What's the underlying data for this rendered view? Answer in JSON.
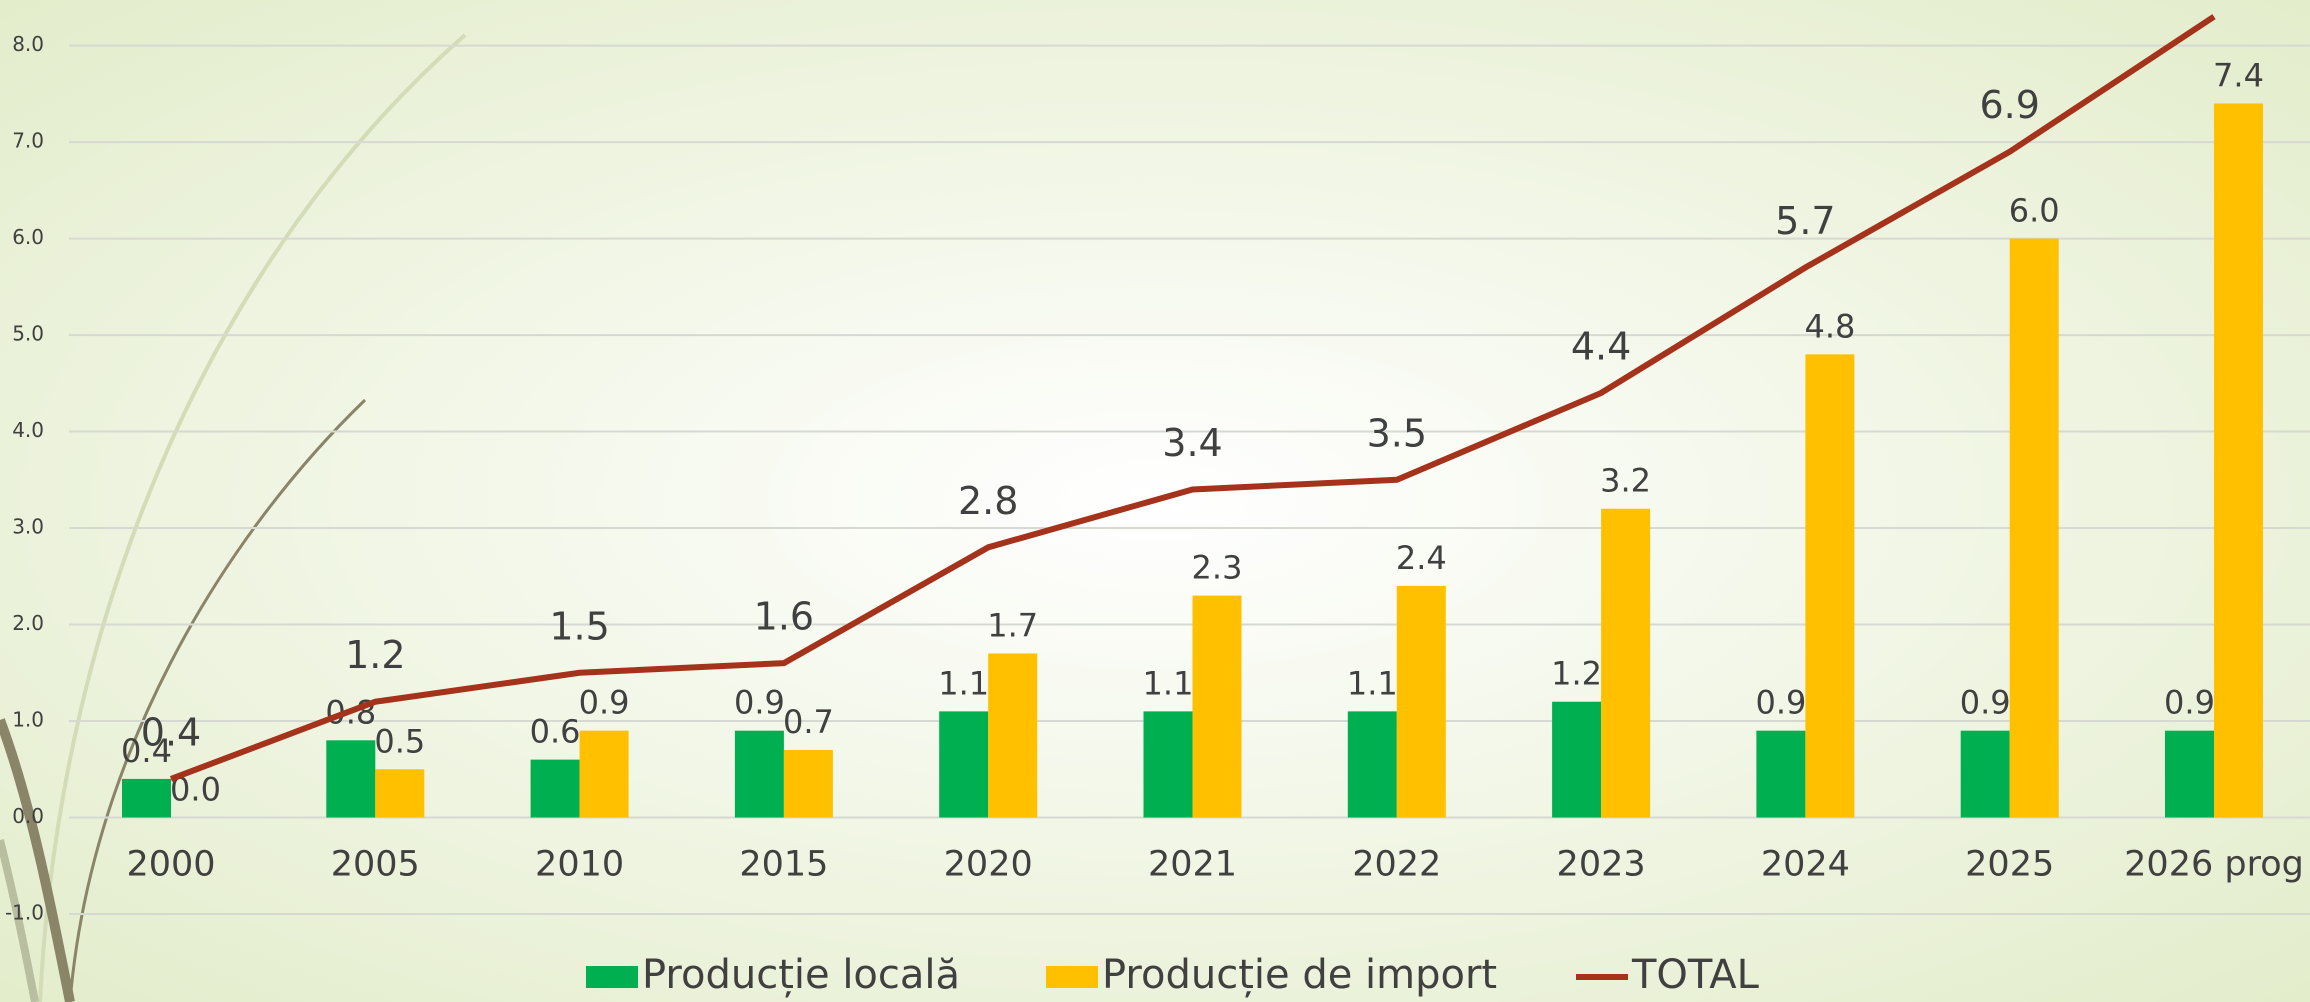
{
  "chart_data": {
    "type": "bar_line",
    "categories": [
      "2000",
      "2005",
      "2010",
      "2015",
      "2020",
      "2021",
      "2022",
      "2023",
      "2024",
      "2025",
      "2026 prog"
    ],
    "series": [
      {
        "name": "Producție locală",
        "type": "bar",
        "color": "#00b050",
        "values": [
          0.4,
          0.8,
          0.6,
          0.9,
          1.1,
          1.1,
          1.1,
          1.2,
          0.9,
          0.9,
          0.9
        ],
        "value_labels": [
          "0.4",
          "0.8",
          "0.6",
          "0.9",
          "1.1",
          "1.1",
          "1.1",
          "1.2",
          "0.9",
          "0.9",
          "0.9"
        ]
      },
      {
        "name": "Producție de import",
        "type": "bar",
        "color": "#ffc000",
        "values": [
          0.0,
          0.5,
          0.9,
          0.7,
          1.7,
          2.3,
          2.4,
          3.2,
          4.8,
          6.0,
          7.4
        ],
        "value_labels": [
          "0.0",
          "0.5",
          "0.9",
          "0.7",
          "1.7",
          "2.3",
          "2.4",
          "3.2",
          "4.8",
          "6.0",
          "7.4"
        ]
      },
      {
        "name": "TOTAL",
        "type": "line",
        "color": "#a5321a",
        "values": [
          0.4,
          1.2,
          1.5,
          1.6,
          2.8,
          3.4,
          3.5,
          4.4,
          5.7,
          6.9,
          8.3
        ],
        "value_labels": [
          "0.4",
          "1.2",
          "1.5",
          "1.6",
          "2.8",
          "3.4",
          "3.5",
          "4.4",
          "5.7",
          "6.9",
          null
        ]
      }
    ],
    "ylim": [
      -1.0,
      8.4
    ],
    "yticks": [
      {
        "value": -1,
        "label": "-1.0"
      },
      {
        "value": 0,
        "label": "0.0"
      },
      {
        "value": 1,
        "label": "1.0"
      },
      {
        "value": 2,
        "label": "2.0"
      },
      {
        "value": 3,
        "label": "3.0"
      },
      {
        "value": 4,
        "label": "4.0"
      },
      {
        "value": 5,
        "label": "5.0"
      },
      {
        "value": 6,
        "label": "6.0"
      },
      {
        "value": 7,
        "label": "7.0"
      },
      {
        "value": 8,
        "label": "8.0"
      }
    ],
    "grid": true,
    "legend": "bottom"
  }
}
